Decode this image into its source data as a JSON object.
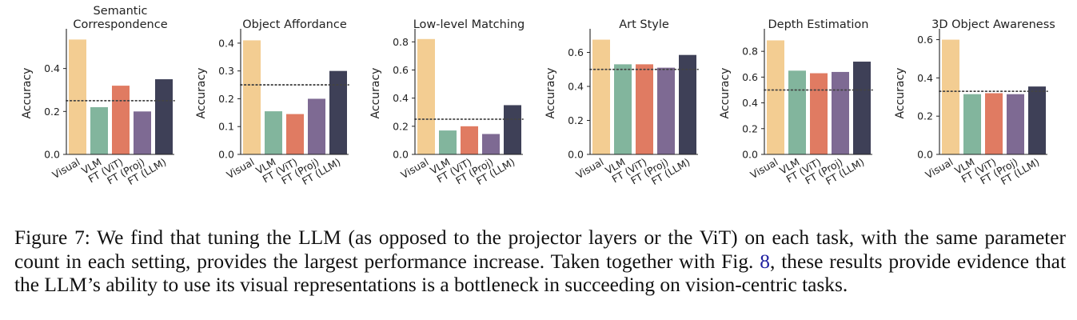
{
  "colors": {
    "Visual": "#f3cd92",
    "VLM": "#82b59d",
    "FT (ViT)": "#e07b62",
    "FT (Proj)": "#7e6a93",
    "FT (LLM)": "#3e4057",
    "chance_line": "#444444"
  },
  "chart_data": [
    {
      "type": "bar",
      "title": "Semantic\nCorrespondence",
      "categories": [
        "Visual",
        "VLM",
        "FT (ViT)",
        "FT (Proj)",
        "FT (LLM)"
      ],
      "values": [
        0.535,
        0.22,
        0.32,
        0.2,
        0.35
      ],
      "ylabel": "Accuracy",
      "ylim": [
        0,
        0.57
      ],
      "yticks": [
        "0.0",
        "0.2",
        "0.4"
      ],
      "ytick_values": [
        0,
        0.2,
        0.4
      ],
      "chance": 0.25
    },
    {
      "type": "bar",
      "title": "Object Affordance",
      "categories": [
        "Visual",
        "VLM",
        "FT (ViT)",
        "FT (Proj)",
        "FT (LLM)"
      ],
      "values": [
        0.41,
        0.155,
        0.145,
        0.2,
        0.3
      ],
      "ylabel": "Accuracy",
      "ylim": [
        0,
        0.44
      ],
      "yticks": [
        "0.0",
        "0.1",
        "0.2",
        "0.3",
        "0.4"
      ],
      "ytick_values": [
        0,
        0.1,
        0.2,
        0.3,
        0.4
      ],
      "chance": 0.25
    },
    {
      "type": "bar",
      "title": "Low-level Matching",
      "categories": [
        "Visual",
        "VLM",
        "FT (ViT)",
        "FT (Proj)",
        "FT (LLM)"
      ],
      "values": [
        0.82,
        0.17,
        0.2,
        0.145,
        0.35
      ],
      "ylabel": "Accuracy",
      "ylim": [
        0,
        0.87
      ],
      "yticks": [
        "0.0",
        "0.2",
        "0.4",
        "0.6",
        "0.8"
      ],
      "ytick_values": [
        0,
        0.2,
        0.4,
        0.6,
        0.8
      ],
      "chance": 0.25
    },
    {
      "type": "bar",
      "title": "Art Style",
      "categories": [
        "Visual",
        "VLM",
        "FT (ViT)",
        "FT (Proj)",
        "FT (LLM)"
      ],
      "values": [
        0.675,
        0.53,
        0.53,
        0.51,
        0.585
      ],
      "ylabel": "Accuracy",
      "ylim": [
        0,
        0.72
      ],
      "yticks": [
        "0.0",
        "0.2",
        "0.4",
        "0.6"
      ],
      "ytick_values": [
        0,
        0.2,
        0.4,
        0.6
      ],
      "chance": 0.5
    },
    {
      "type": "bar",
      "title": "Depth Estimation",
      "categories": [
        "Visual",
        "VLM",
        "FT (ViT)",
        "FT (Proj)",
        "FT (LLM)"
      ],
      "values": [
        0.885,
        0.65,
        0.63,
        0.64,
        0.72
      ],
      "ylabel": "Accuracy",
      "ylim": [
        0,
        0.95
      ],
      "yticks": [
        "0.0",
        "0.2",
        "0.4",
        "0.6",
        "0.8"
      ],
      "ytick_values": [
        0,
        0.2,
        0.4,
        0.6,
        0.8
      ],
      "chance": 0.5
    },
    {
      "type": "bar",
      "title": "3D Object Awareness",
      "categories": [
        "Visual",
        "VLM",
        "FT (ViT)",
        "FT (Proj)",
        "FT (LLM)"
      ],
      "values": [
        0.6,
        0.315,
        0.32,
        0.315,
        0.355
      ],
      "ylabel": "Accuracy",
      "ylim": [
        0,
        0.64
      ],
      "yticks": [
        "0.0",
        "0.2",
        "0.4",
        "0.6"
      ],
      "ytick_values": [
        0,
        0.2,
        0.4,
        0.6
      ],
      "chance": 0.33
    }
  ],
  "caption": {
    "label": "Figure 7:",
    "text_before_ref": " We find that tuning the LLM (as opposed to the projector layers or the ViT) on each task, with the same parameter count in each setting, provides the largest performance increase. Taken together with Fig. ",
    "ref": "8",
    "text_after_ref": ", these results provide evidence that the LLM’s ability to use its visual representations is a bottleneck in succeeding on vision-centric tasks."
  }
}
